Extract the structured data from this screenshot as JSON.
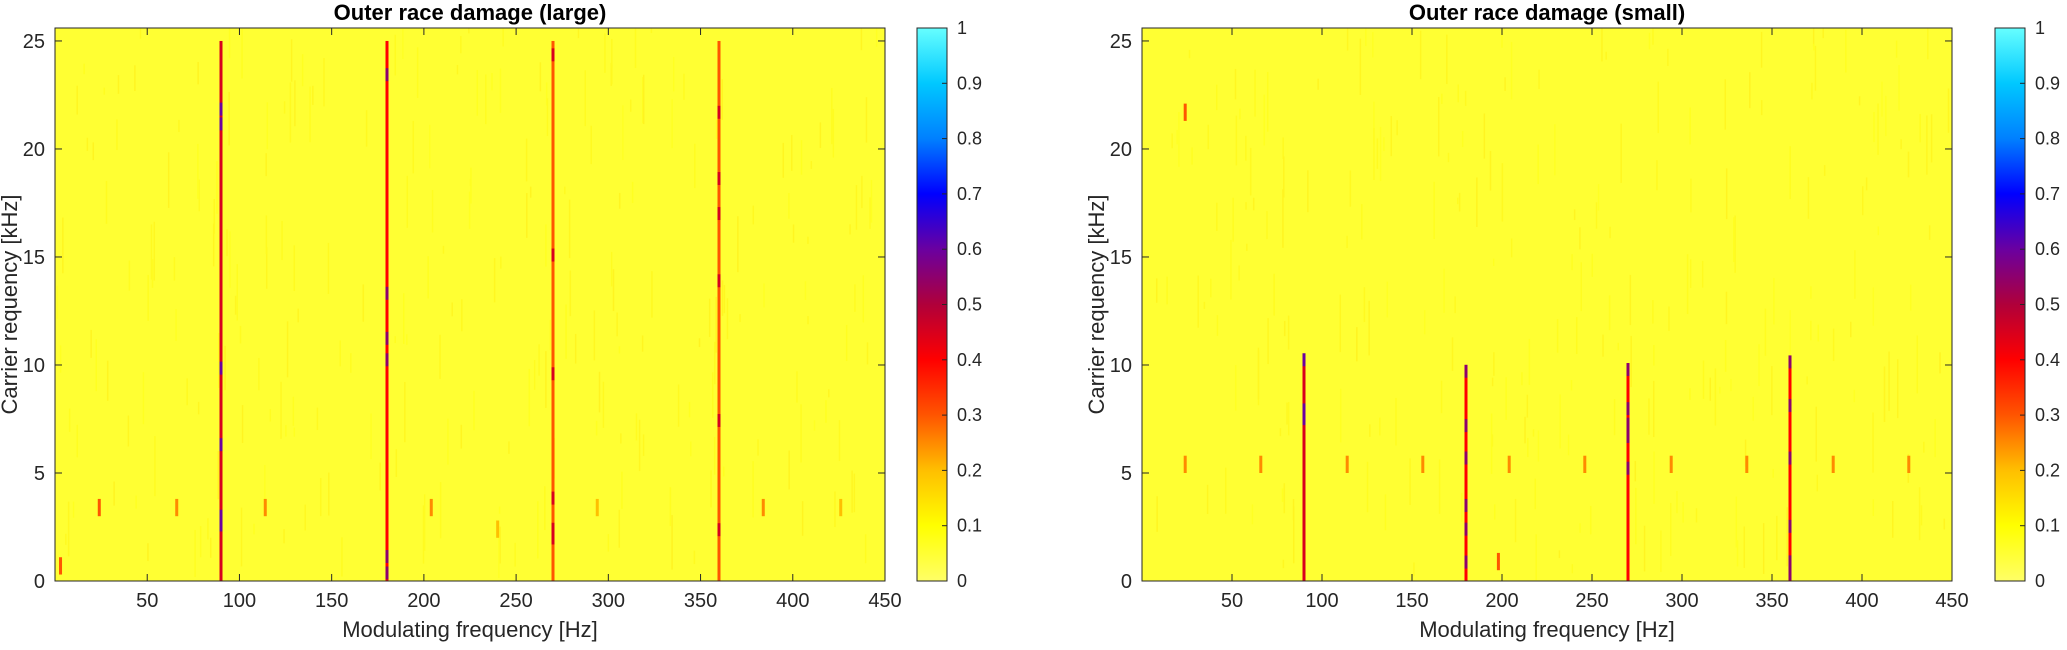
{
  "chart_data": [
    {
      "type": "heatmap",
      "title": "Outer race damage (large)",
      "xlabel": "Modulating frequency [Hz]",
      "ylabel": "Carrier requency [kHz]",
      "xlim": [
        0,
        450
      ],
      "ylim": [
        0,
        25.6
      ],
      "xticks": [
        50,
        100,
        150,
        200,
        250,
        300,
        350,
        400,
        450
      ],
      "yticks": [
        0,
        5,
        10,
        15,
        20,
        25
      ],
      "colorbar": {
        "range": [
          0,
          1
        ],
        "ticks": [
          0,
          0.1,
          0.2,
          0.3,
          0.4,
          0.5,
          0.6,
          0.7,
          0.8,
          0.9,
          1
        ],
        "colors": [
          "#ffff66",
          "#ffff00",
          "#ffbf00",
          "#ff5500",
          "#ff0000",
          "#b0003a",
          "#6a00a0",
          "#0000ff",
          "#0080ff",
          "#00c8ff",
          "#66ffff"
        ]
      },
      "background_value": 0.05,
      "grid": false,
      "lines": [
        {
          "x": 90,
          "y_range": [
            0,
            25
          ],
          "value": 0.45
        },
        {
          "x": 180,
          "y_range": [
            0,
            25
          ],
          "value": 0.4
        },
        {
          "x": 270,
          "y_range": [
            0,
            25
          ],
          "value": 0.3
        },
        {
          "x": 360,
          "y_range": [
            0,
            25
          ],
          "value": 0.3
        }
      ],
      "spots": [
        {
          "x": 24,
          "y": 3,
          "value": 0.3
        },
        {
          "x": 66,
          "y": 3,
          "value": 0.25
        },
        {
          "x": 114,
          "y": 3,
          "value": 0.25
        },
        {
          "x": 204,
          "y": 3,
          "value": 0.25
        },
        {
          "x": 240,
          "y": 2,
          "value": 0.2
        },
        {
          "x": 294,
          "y": 3,
          "value": 0.2
        },
        {
          "x": 384,
          "y": 3,
          "value": 0.25
        },
        {
          "x": 426,
          "y": 3,
          "value": 0.2
        },
        {
          "x": 3,
          "y": 0.3,
          "value": 0.3
        }
      ]
    },
    {
      "type": "heatmap",
      "title": "Outer race damage (small)",
      "xlabel": "Modulating frequency [Hz]",
      "ylabel": "Carrier requency [kHz]",
      "xlim": [
        0,
        450
      ],
      "ylim": [
        0,
        25.6
      ],
      "xticks": [
        50,
        100,
        150,
        200,
        250,
        300,
        350,
        400,
        450
      ],
      "yticks": [
        0,
        5,
        10,
        15,
        20,
        25
      ],
      "colorbar": {
        "range": [
          0,
          1
        ],
        "ticks": [
          0,
          0.1,
          0.2,
          0.3,
          0.4,
          0.5,
          0.6,
          0.7,
          0.8,
          0.9,
          1
        ],
        "colors": [
          "#ffff66",
          "#ffff00",
          "#ffbf00",
          "#ff5500",
          "#ff0000",
          "#b0003a",
          "#6a00a0",
          "#0000ff",
          "#0080ff",
          "#00c8ff",
          "#66ffff"
        ]
      },
      "background_value": 0.05,
      "grid": false,
      "lines": [
        {
          "x": 90,
          "y_range": [
            0,
            10
          ],
          "value": 0.45
        },
        {
          "x": 180,
          "y_range": [
            0,
            10
          ],
          "value": 0.4
        },
        {
          "x": 270,
          "y_range": [
            0,
            10
          ],
          "value": 0.4
        },
        {
          "x": 360,
          "y_range": [
            0,
            10
          ],
          "value": 0.4
        }
      ],
      "spots": [
        {
          "x": 24,
          "y": 21.3,
          "value": 0.3
        },
        {
          "x": 24,
          "y": 5,
          "value": 0.25
        },
        {
          "x": 66,
          "y": 5,
          "value": 0.25
        },
        {
          "x": 114,
          "y": 5,
          "value": 0.25
        },
        {
          "x": 156,
          "y": 5,
          "value": 0.25
        },
        {
          "x": 204,
          "y": 5,
          "value": 0.25
        },
        {
          "x": 246,
          "y": 5,
          "value": 0.25
        },
        {
          "x": 294,
          "y": 5,
          "value": 0.25
        },
        {
          "x": 336,
          "y": 5,
          "value": 0.25
        },
        {
          "x": 384,
          "y": 5,
          "value": 0.25
        },
        {
          "x": 426,
          "y": 5,
          "value": 0.25
        },
        {
          "x": 198,
          "y": 0.5,
          "value": 0.3
        }
      ]
    }
  ]
}
